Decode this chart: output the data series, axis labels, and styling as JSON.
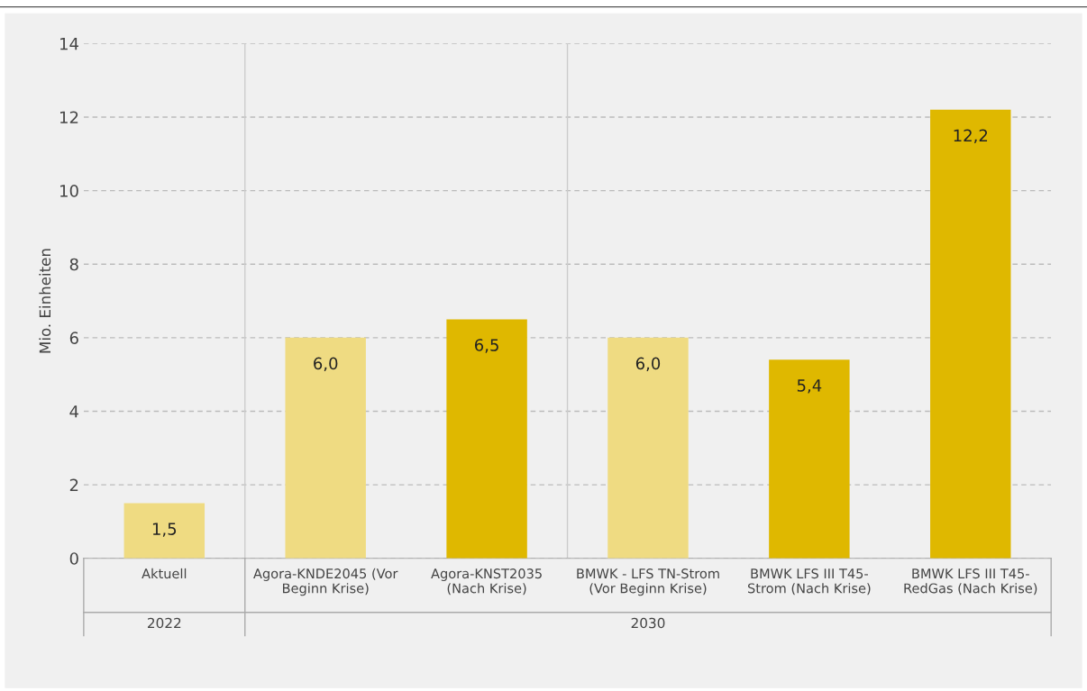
{
  "chart_data": {
    "type": "bar",
    "ylabel": "Mio. Einheiten",
    "categories": [
      "Aktuell",
      "Agora-KNDE2045 (Vor\nBeginn Krise)",
      "Agora-KNST2035\n(Nach Krise)",
      "BMWK - LFS TN-Strom\n(Vor Beginn Krise)",
      "BMWK LFS III T45-\nStrom (Nach Krise)",
      "BMWK LFS III T45-\nRedGas (Nach Krise)"
    ],
    "values": [
      1.5,
      6.0,
      6.5,
      6.0,
      5.4,
      12.2
    ],
    "colors": [
      "#efdb82",
      "#efdb82",
      "#dfb800",
      "#efdb82",
      "#dfb800",
      "#dfb800"
    ],
    "value_labels": [
      "1,5",
      "6,0",
      "6,5",
      "6,0",
      "5,4",
      "12,2"
    ],
    "annotations": [
      "2022",
      "2030"
    ],
    "ylim": [
      0,
      14
    ],
    "yticks": [
      0,
      2,
      4,
      6,
      8,
      10,
      12,
      14
    ],
    "grid": "y",
    "legend": false
  }
}
